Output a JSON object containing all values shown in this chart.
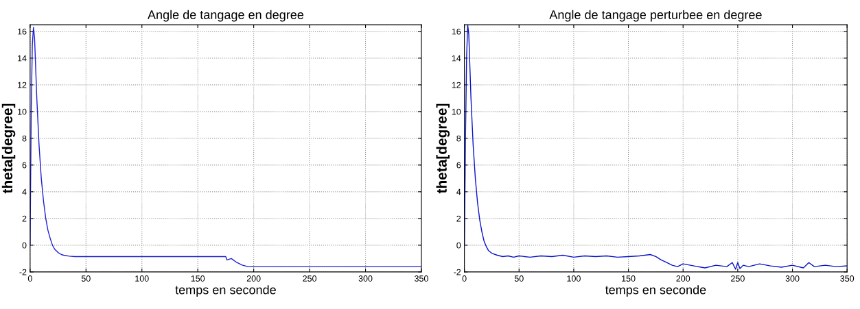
{
  "chart_data": [
    {
      "type": "line",
      "title": "Angle de tangage en degree",
      "xlabel": "temps en seconde",
      "ylabel": "theta[degree]",
      "xlim": [
        0,
        350
      ],
      "xticks": [
        0,
        50,
        100,
        150,
        200,
        250,
        300,
        350
      ],
      "ylim": [
        -2,
        16.5
      ],
      "yticks": [
        -2,
        0,
        2,
        4,
        6,
        8,
        10,
        12,
        14,
        16
      ],
      "grid": true,
      "line_style": "solid",
      "series": [
        {
          "color": "#1f1fd0",
          "x": [
            0,
            1,
            2,
            3,
            4,
            6,
            8,
            10,
            12,
            14,
            16,
            18,
            20,
            22,
            25,
            28,
            30,
            35,
            40,
            50,
            100,
            150,
            175,
            176,
            180,
            185,
            190,
            195,
            200,
            250,
            300,
            350
          ],
          "values": [
            0,
            10,
            15,
            16.3,
            15.5,
            11,
            7.5,
            5,
            3.3,
            2,
            1.1,
            0.5,
            0,
            -0.3,
            -0.55,
            -0.7,
            -0.75,
            -0.82,
            -0.85,
            -0.85,
            -0.85,
            -0.85,
            -0.85,
            -1.1,
            -1.0,
            -1.3,
            -1.5,
            -1.6,
            -1.6,
            -1.6,
            -1.6,
            -1.6
          ]
        }
      ]
    },
    {
      "type": "line",
      "title": "Angle de tangage perturbee en degree",
      "xlabel": "temps en seconde",
      "ylabel": "theta[degree]",
      "xlim": [
        0,
        350
      ],
      "xticks": [
        0,
        50,
        100,
        150,
        200,
        250,
        300,
        350
      ],
      "ylim": [
        -2,
        16.5
      ],
      "yticks": [
        -2,
        0,
        2,
        4,
        6,
        8,
        10,
        12,
        14,
        16
      ],
      "grid": true,
      "line_style": "solid",
      "series": [
        {
          "color": "#0a14c8",
          "x": [
            0,
            1,
            2,
            3,
            4,
            6,
            8,
            10,
            12,
            14,
            16,
            18,
            20,
            22,
            25,
            30,
            35,
            40,
            45,
            50,
            60,
            70,
            80,
            90,
            100,
            110,
            120,
            130,
            140,
            150,
            160,
            165,
            170,
            175,
            180,
            185,
            190,
            195,
            200,
            210,
            220,
            230,
            240,
            245,
            248,
            250,
            252,
            255,
            260,
            270,
            280,
            290,
            300,
            310,
            315,
            320,
            330,
            340,
            350
          ],
          "values": [
            0,
            8,
            14,
            16.5,
            15.8,
            11,
            7.5,
            5,
            3.2,
            1.9,
            1,
            0.3,
            -0.1,
            -0.4,
            -0.6,
            -0.75,
            -0.85,
            -0.8,
            -0.9,
            -0.8,
            -0.9,
            -0.8,
            -0.85,
            -0.75,
            -0.9,
            -0.8,
            -0.85,
            -0.8,
            -0.9,
            -0.85,
            -0.8,
            -0.75,
            -0.7,
            -0.85,
            -1.1,
            -1.3,
            -1.5,
            -1.6,
            -1.4,
            -1.55,
            -1.7,
            -1.5,
            -1.6,
            -1.3,
            -1.8,
            -1.3,
            -1.75,
            -1.5,
            -1.6,
            -1.4,
            -1.55,
            -1.65,
            -1.5,
            -1.7,
            -1.3,
            -1.6,
            -1.5,
            -1.6,
            -1.55
          ]
        }
      ]
    }
  ]
}
